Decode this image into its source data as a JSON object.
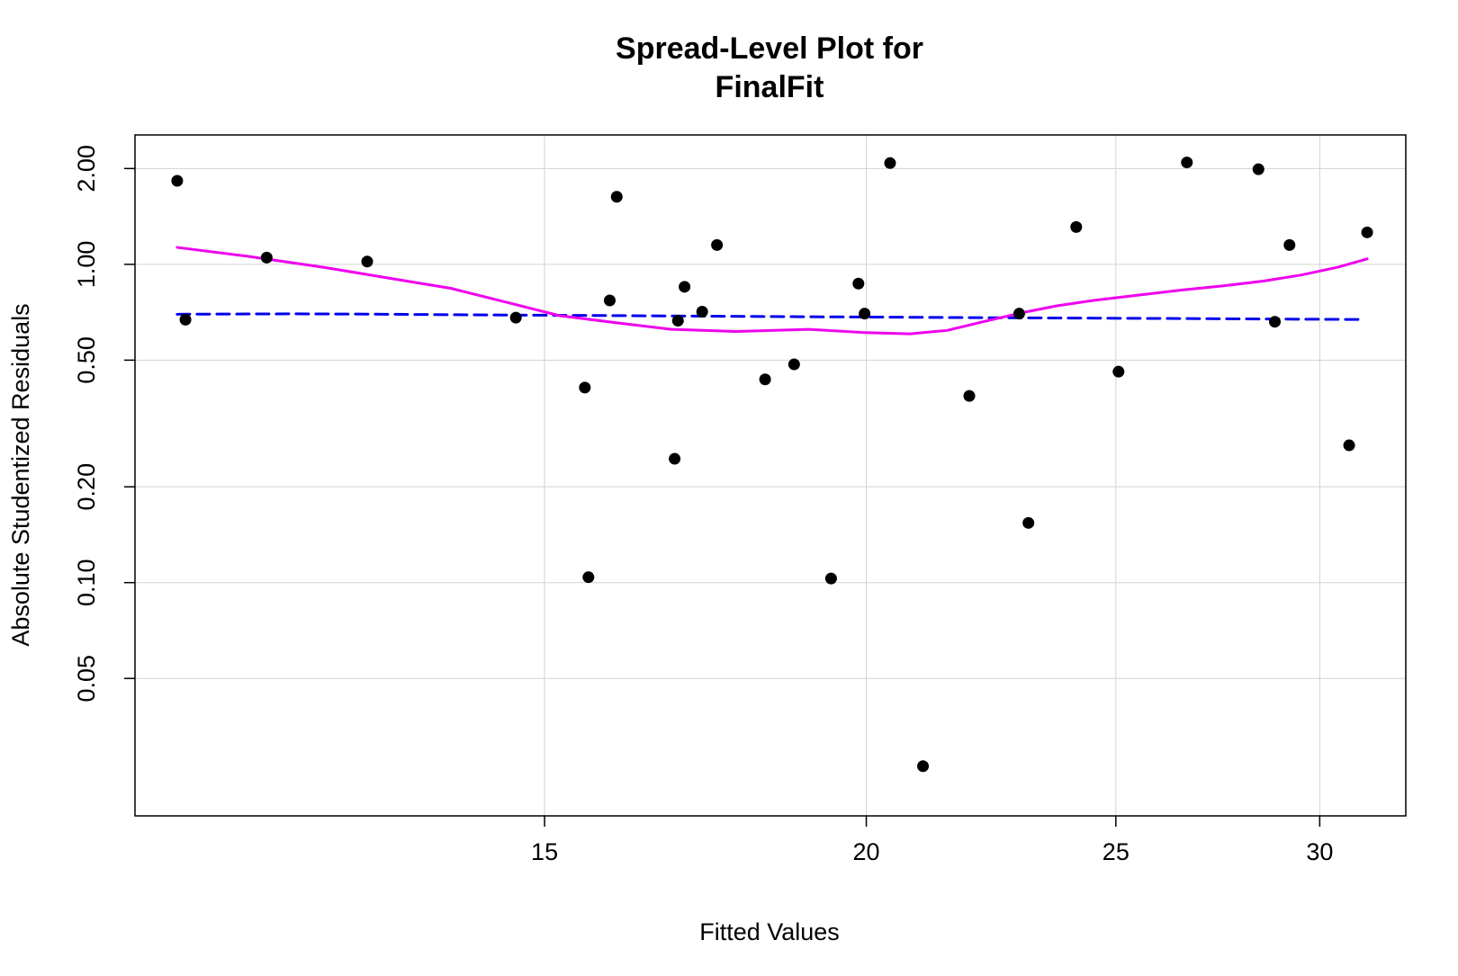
{
  "chart_data": {
    "type": "scatter",
    "title_lines": [
      "Spread-Level Plot for",
      "FinalFit"
    ],
    "xlabel": "Fitted Values",
    "ylabel": "Absolute Studentized Residuals",
    "xscale": "log",
    "yscale": "log",
    "xlim": [
      10.4,
      32.4
    ],
    "ylim": [
      0.0185,
      2.55
    ],
    "grid": true,
    "x_ticks": [
      15,
      20,
      25,
      30
    ],
    "x_tick_labels": [
      "15",
      "20",
      "25",
      "30"
    ],
    "y_ticks": [
      0.05,
      0.1,
      0.2,
      0.5,
      1.0,
      2.0
    ],
    "y_tick_labels": [
      "0.05",
      "0.10",
      "0.20",
      "0.50",
      "1.00",
      "2.00"
    ],
    "points": {
      "color": "#000000",
      "x": [
        10.8,
        10.88,
        11.7,
        12.8,
        14.62,
        15.55,
        15.6,
        15.9,
        16.0,
        16.85,
        16.9,
        17.0,
        17.27,
        17.5,
        18.27,
        18.75,
        19.38,
        19.86,
        19.97,
        20.43,
        21.04,
        21.93,
        22.93,
        23.12,
        24.13,
        25.06,
        26.64,
        28.4,
        28.82,
        29.2,
        30.8,
        31.3
      ],
      "y": [
        1.83,
        0.67,
        1.05,
        1.02,
        0.68,
        0.41,
        0.104,
        0.77,
        1.63,
        0.245,
        0.665,
        0.85,
        0.71,
        1.15,
        0.435,
        0.485,
        0.103,
        0.87,
        0.7,
        2.08,
        0.0265,
        0.386,
        0.7,
        0.154,
        1.31,
        0.46,
        2.09,
        1.99,
        0.66,
        1.15,
        0.27,
        1.26
      ]
    },
    "series": [
      {
        "style": "dashed",
        "color": "#0000EE",
        "x": [
          10.8,
          12.0,
          13.0,
          14.0,
          15.0,
          16.0,
          18.0,
          20.0,
          22.0,
          24.0,
          26.0,
          28.0,
          30.0,
          31.2
        ],
        "y": [
          0.697,
          0.699,
          0.697,
          0.694,
          0.692,
          0.69,
          0.686,
          0.683,
          0.68,
          0.678,
          0.676,
          0.674,
          0.672,
          0.671
        ]
      },
      {
        "style": "solid",
        "color": "#EE00EE",
        "x": [
          10.8,
          11.5,
          12.3,
          13.0,
          13.8,
          14.5,
          15.2,
          16.0,
          16.8,
          17.8,
          19.0,
          20.0,
          20.8,
          21.5,
          22.2,
          23.0,
          23.7,
          24.5,
          25.5,
          26.5,
          27.5,
          28.5,
          29.5,
          30.5,
          31.3
        ],
        "y": [
          1.13,
          1.06,
          0.98,
          0.91,
          0.84,
          0.76,
          0.69,
          0.655,
          0.625,
          0.615,
          0.625,
          0.61,
          0.605,
          0.62,
          0.66,
          0.705,
          0.74,
          0.77,
          0.8,
          0.83,
          0.855,
          0.885,
          0.925,
          0.98,
          1.04
        ]
      }
    ]
  },
  "colors": {
    "background": "#ffffff",
    "grid": "#d3d3d3",
    "frame": "#000000"
  }
}
